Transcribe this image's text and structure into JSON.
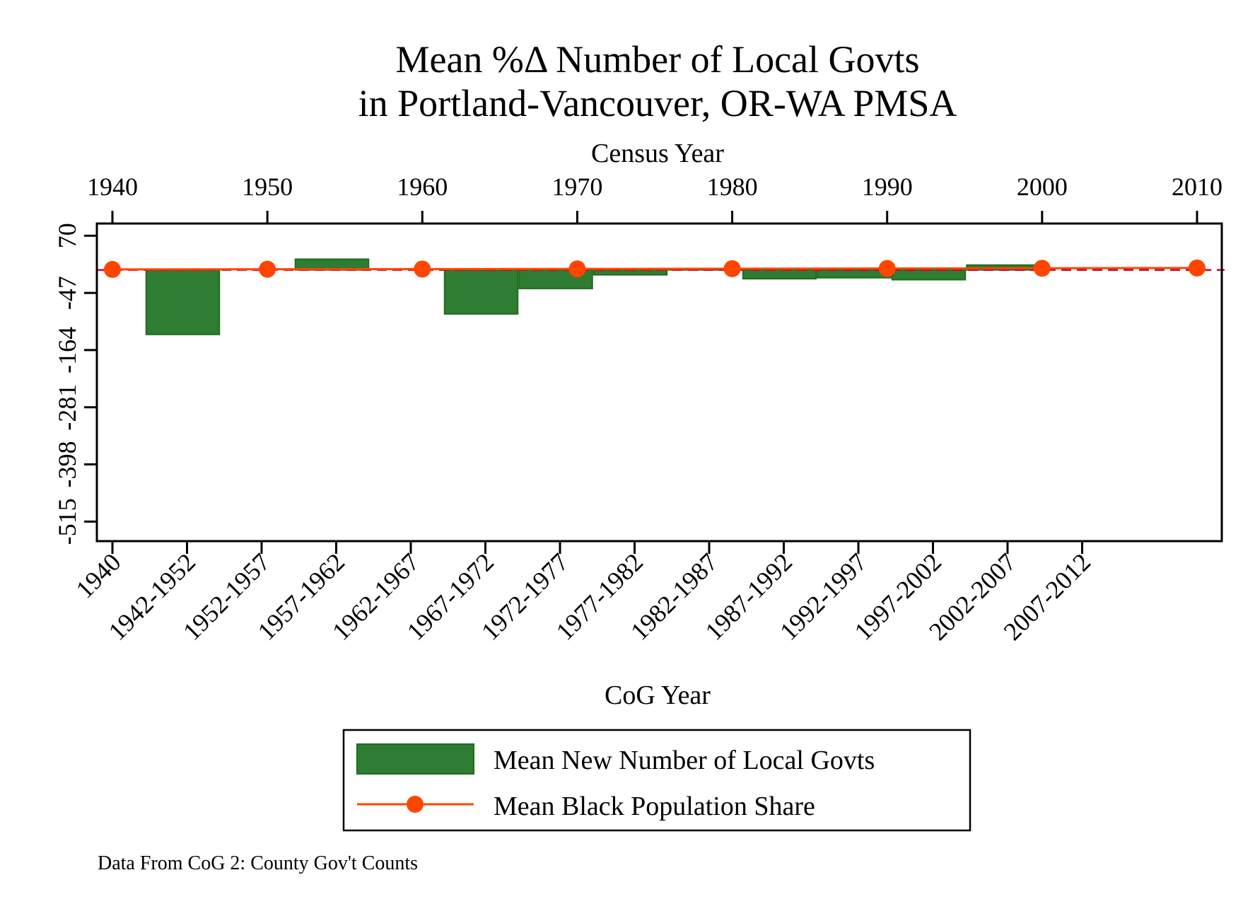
{
  "chart_data": {
    "type": "bar",
    "title": [
      "Mean %Δ Number of Local Govts",
      "in Portland-Vancouver, OR-WA PMSA"
    ],
    "top_axis": {
      "label": "Census Year",
      "ticks": [
        "1940",
        "1950",
        "1960",
        "1970",
        "1980",
        "1990",
        "2000",
        "2010"
      ],
      "range": [
        1940,
        2010
      ]
    },
    "bottom_axis": {
      "label": "CoG Year",
      "categories": [
        "1940",
        "1942-1952",
        "1952-1957",
        "1957-1962",
        "1962-1967",
        "1967-1972",
        "1972-1977",
        "1977-1982",
        "1982-1987",
        "1987-1992",
        "1992-1997",
        "1997-2002",
        "2002-2007",
        "2007-2012"
      ]
    },
    "left_axis": {
      "ticks": [
        -515,
        -398,
        -281,
        -164,
        -47,
        70
      ],
      "tick_labels": [
        "-515",
        "-398",
        "-281",
        "-164",
        "-47",
        "70"
      ],
      "range": [
        -555,
        95
      ]
    },
    "series": [
      {
        "name": "Mean New Number of Local Govts",
        "kind": "bar",
        "color": "#2e7d32",
        "edge_color": "#1f6b1f",
        "values": [
          null,
          -132,
          null,
          22,
          null,
          -90,
          -38,
          -10,
          2,
          -18,
          -16,
          -20,
          10,
          null
        ]
      },
      {
        "name": "Mean Black Population Share",
        "kind": "line",
        "color": "#ff4500",
        "x": [
          1940,
          1950,
          1960,
          1970,
          1980,
          1990,
          2000,
          2010
        ],
        "values": [
          1,
          1.5,
          1.8,
          2.1,
          2.5,
          3.0,
          3.5,
          4.0
        ]
      }
    ],
    "reference_line": {
      "value": 0,
      "color": "#cc0033",
      "style": "dashed"
    },
    "legend_position": "bottom",
    "grid": false
  },
  "note": "Data From CoG 2: County Gov't Counts"
}
